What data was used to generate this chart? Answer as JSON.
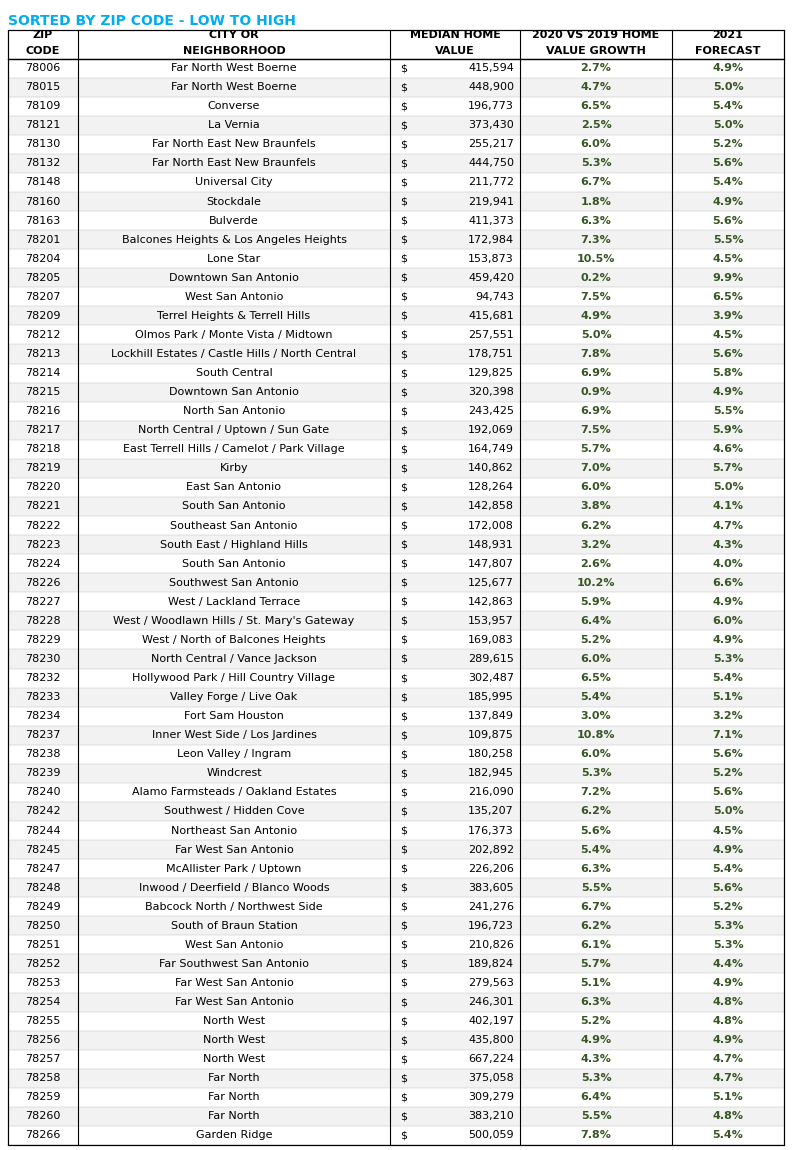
{
  "title": "SORTED BY ZIP CODE - LOW TO HIGH",
  "title_color": "#00AEEF",
  "headers_line1": [
    "ZIP",
    "CITY OR",
    "MEDIAN HOME",
    "2020 VS 2019 HOME",
    "2021"
  ],
  "headers_line2": [
    "CODE",
    "NEIGHBORHOOD",
    "VALUE",
    "VALUE GROWTH",
    "FORECAST"
  ],
  "rows": [
    [
      "78006",
      "Far North West Boerne",
      "$",
      "415,594",
      "2.7%",
      "4.9%"
    ],
    [
      "78015",
      "Far North West Boerne",
      "$",
      "448,900",
      "4.7%",
      "5.0%"
    ],
    [
      "78109",
      "Converse",
      "$",
      "196,773",
      "6.5%",
      "5.4%"
    ],
    [
      "78121",
      "La Vernia",
      "$",
      "373,430",
      "2.5%",
      "5.0%"
    ],
    [
      "78130",
      "Far North East New Braunfels",
      "$",
      "255,217",
      "6.0%",
      "5.2%"
    ],
    [
      "78132",
      "Far North East New Braunfels",
      "$",
      "444,750",
      "5.3%",
      "5.6%"
    ],
    [
      "78148",
      "Universal City",
      "$",
      "211,772",
      "6.7%",
      "5.4%"
    ],
    [
      "78160",
      "Stockdale",
      "$",
      "219,941",
      "1.8%",
      "4.9%"
    ],
    [
      "78163",
      "Bulverde",
      "$",
      "411,373",
      "6.3%",
      "5.6%"
    ],
    [
      "78201",
      "Balcones Heights & Los Angeles Heights",
      "$",
      "172,984",
      "7.3%",
      "5.5%"
    ],
    [
      "78204",
      "Lone Star",
      "$",
      "153,873",
      "10.5%",
      "4.5%"
    ],
    [
      "78205",
      "Downtown San Antonio",
      "$",
      "459,420",
      "0.2%",
      "9.9%"
    ],
    [
      "78207",
      "West San Antonio",
      "$",
      "94,743",
      "7.5%",
      "6.5%"
    ],
    [
      "78209",
      "Terrel Heights & Terrell Hills",
      "$",
      "415,681",
      "4.9%",
      "3.9%"
    ],
    [
      "78212",
      "Olmos Park / Monte Vista / Midtown",
      "$",
      "257,551",
      "5.0%",
      "4.5%"
    ],
    [
      "78213",
      "Lockhill Estates / Castle Hills / North Central",
      "$",
      "178,751",
      "7.8%",
      "5.6%"
    ],
    [
      "78214",
      "South Central",
      "$",
      "129,825",
      "6.9%",
      "5.8%"
    ],
    [
      "78215",
      "Downtown San Antonio",
      "$",
      "320,398",
      "0.9%",
      "4.9%"
    ],
    [
      "78216",
      "North San Antonio",
      "$",
      "243,425",
      "6.9%",
      "5.5%"
    ],
    [
      "78217",
      "North Central / Uptown / Sun Gate",
      "$",
      "192,069",
      "7.5%",
      "5.9%"
    ],
    [
      "78218",
      "East Terrell Hills / Camelot / Park Village",
      "$",
      "164,749",
      "5.7%",
      "4.6%"
    ],
    [
      "78219",
      "Kirby",
      "$",
      "140,862",
      "7.0%",
      "5.7%"
    ],
    [
      "78220",
      "East San Antonio",
      "$",
      "128,264",
      "6.0%",
      "5.0%"
    ],
    [
      "78221",
      "South San Antonio",
      "$",
      "142,858",
      "3.8%",
      "4.1%"
    ],
    [
      "78222",
      "Southeast San Antonio",
      "$",
      "172,008",
      "6.2%",
      "4.7%"
    ],
    [
      "78223",
      "South East / Highland Hills",
      "$",
      "148,931",
      "3.2%",
      "4.3%"
    ],
    [
      "78224",
      "South San Antonio",
      "$",
      "147,807",
      "2.6%",
      "4.0%"
    ],
    [
      "78226",
      "Southwest San Antonio",
      "$",
      "125,677",
      "10.2%",
      "6.6%"
    ],
    [
      "78227",
      "West / Lackland Terrace",
      "$",
      "142,863",
      "5.9%",
      "4.9%"
    ],
    [
      "78228",
      "West / Woodlawn Hills / St. Mary's Gateway",
      "$",
      "153,957",
      "6.4%",
      "6.0%"
    ],
    [
      "78229",
      "West / North of Balcones Heights",
      "$",
      "169,083",
      "5.2%",
      "4.9%"
    ],
    [
      "78230",
      "North Central / Vance Jackson",
      "$",
      "289,615",
      "6.0%",
      "5.3%"
    ],
    [
      "78232",
      "Hollywood Park / Hill Country Village",
      "$",
      "302,487",
      "6.5%",
      "5.4%"
    ],
    [
      "78233",
      "Valley Forge / Live Oak",
      "$",
      "185,995",
      "5.4%",
      "5.1%"
    ],
    [
      "78234",
      "Fort Sam Houston",
      "$",
      "137,849",
      "3.0%",
      "3.2%"
    ],
    [
      "78237",
      "Inner West Side / Los Jardines",
      "$",
      "109,875",
      "10.8%",
      "7.1%"
    ],
    [
      "78238",
      "Leon Valley / Ingram",
      "$",
      "180,258",
      "6.0%",
      "5.6%"
    ],
    [
      "78239",
      "Windcrest",
      "$",
      "182,945",
      "5.3%",
      "5.2%"
    ],
    [
      "78240",
      "Alamo Farmsteads / Oakland Estates",
      "$",
      "216,090",
      "7.2%",
      "5.6%"
    ],
    [
      "78242",
      "Southwest / Hidden Cove",
      "$",
      "135,207",
      "6.2%",
      "5.0%"
    ],
    [
      "78244",
      "Northeast San Antonio",
      "$",
      "176,373",
      "5.6%",
      "4.5%"
    ],
    [
      "78245",
      "Far West San Antonio",
      "$",
      "202,892",
      "5.4%",
      "4.9%"
    ],
    [
      "78247",
      "McAllister Park / Uptown",
      "$",
      "226,206",
      "6.3%",
      "5.4%"
    ],
    [
      "78248",
      "Inwood / Deerfield / Blanco Woods",
      "$",
      "383,605",
      "5.5%",
      "5.6%"
    ],
    [
      "78249",
      "Babcock North / Northwest Side",
      "$",
      "241,276",
      "6.7%",
      "5.2%"
    ],
    [
      "78250",
      "South of Braun Station",
      "$",
      "196,723",
      "6.2%",
      "5.3%"
    ],
    [
      "78251",
      "West San Antonio",
      "$",
      "210,826",
      "6.1%",
      "5.3%"
    ],
    [
      "78252",
      "Far Southwest San Antonio",
      "$",
      "189,824",
      "5.7%",
      "4.4%"
    ],
    [
      "78253",
      "Far West San Antonio",
      "$",
      "279,563",
      "5.1%",
      "4.9%"
    ],
    [
      "78254",
      "Far West San Antonio",
      "$",
      "246,301",
      "6.3%",
      "4.8%"
    ],
    [
      "78255",
      "North West",
      "$",
      "402,197",
      "5.2%",
      "4.8%"
    ],
    [
      "78256",
      "North West",
      "$",
      "435,800",
      "4.9%",
      "4.9%"
    ],
    [
      "78257",
      "North West",
      "$",
      "667,224",
      "4.3%",
      "4.7%"
    ],
    [
      "78258",
      "Far North",
      "$",
      "375,058",
      "5.3%",
      "4.7%"
    ],
    [
      "78259",
      "Far North",
      "$",
      "309,279",
      "6.4%",
      "5.1%"
    ],
    [
      "78260",
      "Far North",
      "$",
      "383,210",
      "5.5%",
      "4.8%"
    ],
    [
      "78266",
      "Garden Ridge",
      "$",
      "500,059",
      "7.8%",
      "5.4%"
    ]
  ],
  "green_color": "#375623",
  "black_color": "#000000",
  "title_fontsize": 10,
  "header_fontsize": 8,
  "data_fontsize": 8
}
